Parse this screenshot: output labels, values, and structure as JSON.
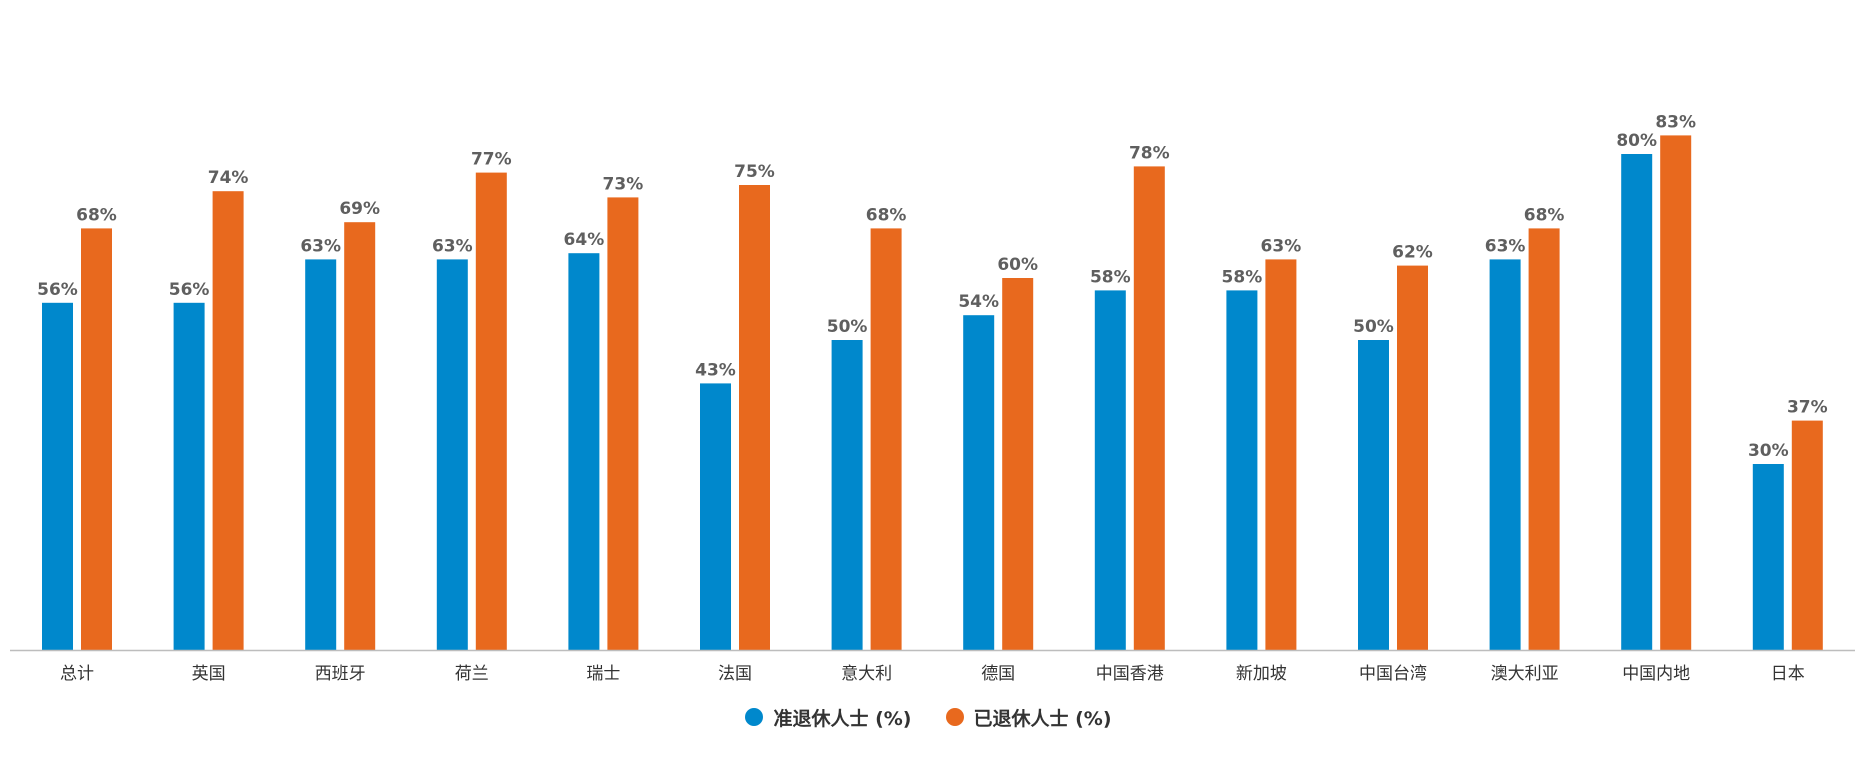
{
  "chart_data": {
    "type": "bar",
    "categories": [
      "总计",
      "英国",
      "西班牙",
      "荷兰",
      "瑞士",
      "法国",
      "意大利",
      "德国",
      "中国香港",
      "新加坡",
      "中国台湾",
      "澳大利亚",
      "中国内地",
      "日本"
    ],
    "series": [
      {
        "name": "准退休人士 (%)",
        "color": "#0088CC",
        "values": [
          56,
          56,
          63,
          63,
          64,
          43,
          50,
          54,
          58,
          58,
          50,
          63,
          80,
          30
        ],
        "labels": [
          "56%",
          "56%",
          "63%",
          "63%",
          "64%",
          "43%",
          "50%",
          "54%",
          "58%",
          "58%",
          "50%",
          "63%",
          "80%",
          "30%"
        ]
      },
      {
        "name": "已退休人士 (%)",
        "color": "#E8691E",
        "values": [
          68,
          74,
          69,
          77,
          73,
          75,
          68,
          60,
          78,
          63,
          62,
          68,
          83,
          37
        ],
        "labels": [
          "68%",
          "74%",
          "69%",
          "77%",
          "73%",
          "75%",
          "68%",
          "60%",
          "78%",
          "63%",
          "62%",
          "68%",
          "83%",
          "37%"
        ]
      }
    ],
    "ylim": [
      0,
      100
    ],
    "grid": false,
    "legend_position": "bottom-center",
    "axis_color": "#bdbdbd"
  }
}
